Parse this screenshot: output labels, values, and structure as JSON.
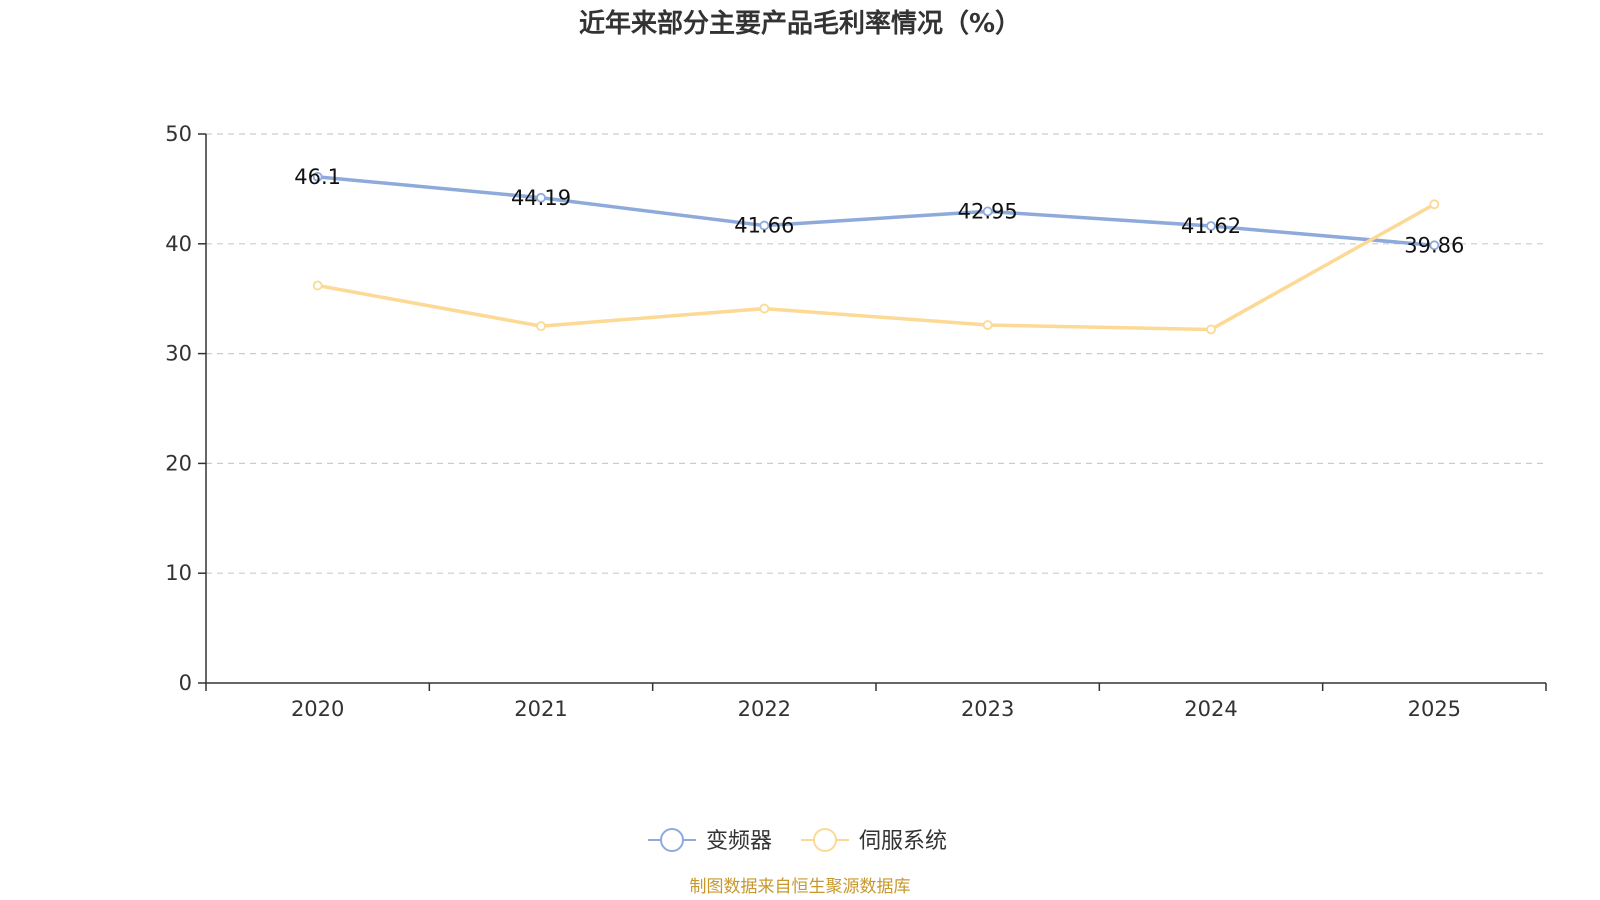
{
  "chart_data": {
    "type": "line",
    "title": "近年来部分主要产品毛利率情况（%）",
    "categories": [
      "2020",
      "2021",
      "2022",
      "2023",
      "2024",
      "2025"
    ],
    "ylim": [
      0,
      50
    ],
    "yticks": [
      "0",
      "10",
      "20",
      "30",
      "40",
      "50"
    ],
    "grid": true,
    "legend_position": "bottom-center",
    "series": [
      {
        "name": "变频器",
        "color": "#8eaadb",
        "values": [
          46.1,
          44.19,
          41.66,
          42.95,
          41.62,
          39.86
        ],
        "labels": [
          "46.1",
          "44.19",
          "41.66",
          "42.95",
          "41.62",
          "39.86"
        ]
      },
      {
        "name": "伺服系统",
        "color": "#fcd994",
        "values": [
          36.2,
          32.5,
          34.1,
          32.6,
          32.2,
          43.6
        ]
      }
    ],
    "source": "制图数据来自恒生聚源数据库",
    "source_color": "#c8982c"
  }
}
